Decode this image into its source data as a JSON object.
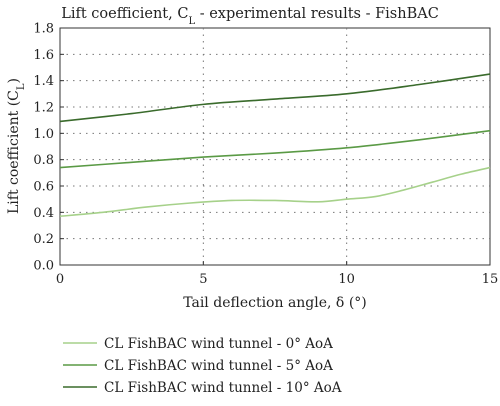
{
  "chart_data": {
    "type": "line",
    "title": "Lift coefficient, C_L - experimental results - FishBAC",
    "title_main": "Lift coefficient, C",
    "title_sub": "L",
    "title_rest": " - experimental results - FishBAC",
    "xlabel": "Tail deflection angle, δ (°)",
    "ylabel": "Lift coefficient (C_L)",
    "ylabel_main": "Lift coefficient (C",
    "ylabel_sub": "L",
    "ylabel_rest": ")",
    "xlim": [
      0,
      15
    ],
    "ylim": [
      0,
      1.8
    ],
    "x_ticks": [
      "0",
      "5",
      "10",
      "15"
    ],
    "y_ticks": [
      "0.0",
      "0.2",
      "0.4",
      "0.6",
      "0.8",
      "1.0",
      "1.2",
      "1.4",
      "1.6",
      "1.8"
    ],
    "grid": "dotted",
    "legend_position": "bottom",
    "series": [
      {
        "name": "CL FishBAC wind tunnel - 0° AoA",
        "color": "#a6d18a",
        "x": [
          0,
          1.5,
          3,
          4.5,
          6,
          7.5,
          9,
          10,
          11,
          12,
          13,
          14,
          15
        ],
        "y": [
          0.37,
          0.4,
          0.44,
          0.47,
          0.49,
          0.49,
          0.48,
          0.5,
          0.52,
          0.57,
          0.63,
          0.69,
          0.74
        ]
      },
      {
        "name": "CL FishBAC wind tunnel - 5° AoA",
        "color": "#5a9a45",
        "x": [
          0,
          2.5,
          5,
          7.5,
          10,
          12.5,
          15
        ],
        "y": [
          0.74,
          0.78,
          0.82,
          0.85,
          0.89,
          0.95,
          1.02
        ]
      },
      {
        "name": "CL FishBAC wind tunnel - 10° AoA",
        "color": "#3a6b2c",
        "x": [
          0,
          2.5,
          5,
          7.5,
          10,
          12.5,
          15
        ],
        "y": [
          1.09,
          1.15,
          1.22,
          1.26,
          1.3,
          1.37,
          1.45
        ]
      }
    ]
  }
}
